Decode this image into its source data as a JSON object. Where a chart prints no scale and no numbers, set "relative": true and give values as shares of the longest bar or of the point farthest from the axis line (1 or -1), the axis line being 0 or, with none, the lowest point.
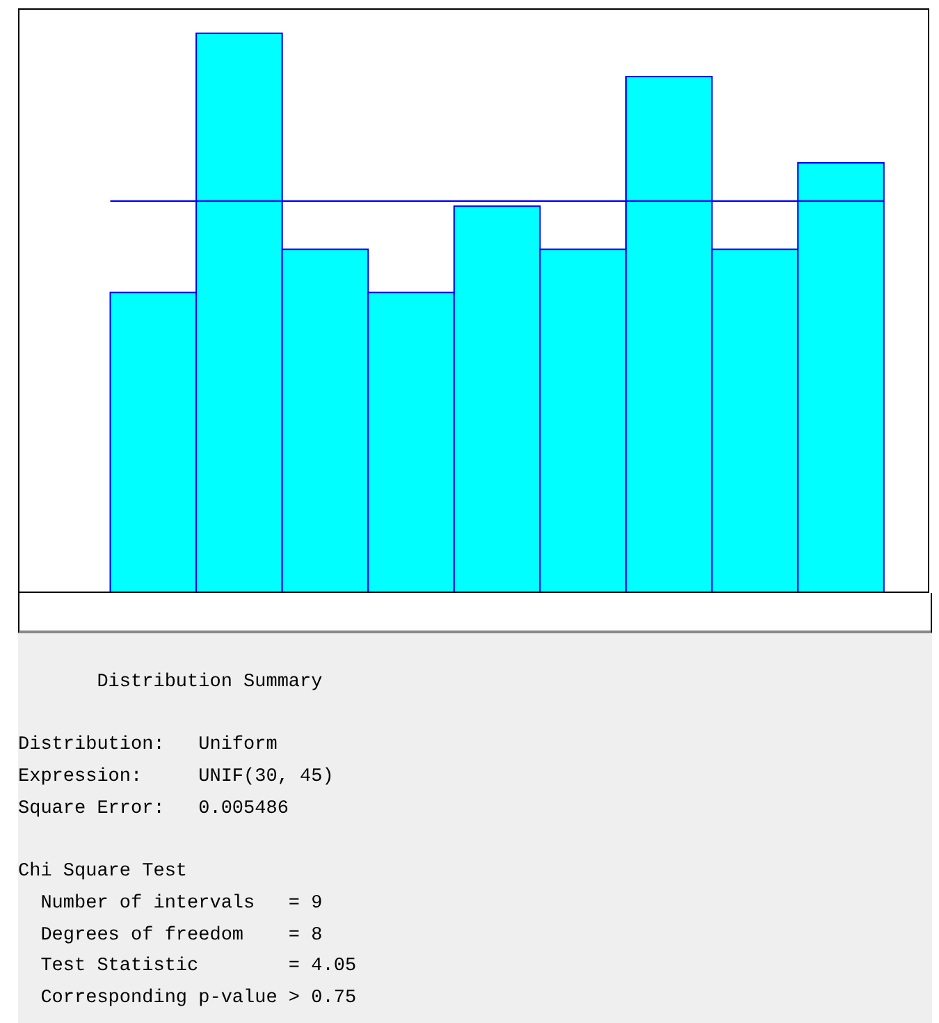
{
  "chart_data": {
    "type": "bar",
    "relative": true,
    "categories": [
      null,
      null,
      null,
      null,
      null,
      null,
      null,
      null,
      null
    ],
    "values": [
      0.538,
      1,
      0.615,
      0.538,
      0.692,
      0.615,
      0.923,
      0.615,
      0.769
    ],
    "color": "#00ffff",
    "ref_lines": [
      {
        "axis": "y",
        "value": 0.701,
        "color": "#0000ff"
      }
    ],
    "annotations": [
      "Distribution Summary",
      "Distribution:   Uniform",
      "Expression:     UNIF(30, 45)",
      "Square Error:   0.005486",
      "Chi Square Test",
      "  Number of intervals   = 9",
      "  Degrees of freedom    = 8",
      "  Test Statistic        = 4.05",
      "  Corresponding p-value > 0.75"
    ]
  }
}
